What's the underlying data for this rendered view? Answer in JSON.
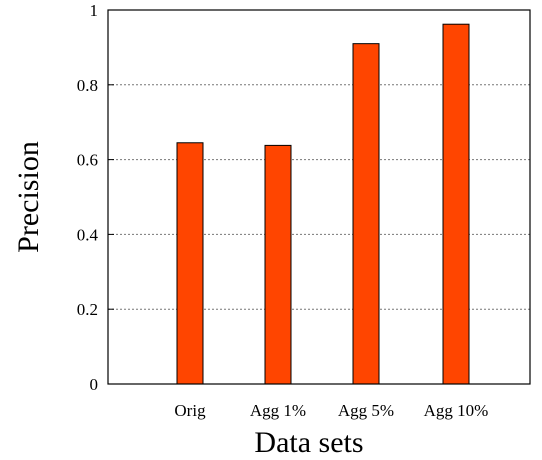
{
  "chart_data": {
    "type": "bar",
    "categories": [
      "Orig",
      "Agg 1%",
      "Agg 5%",
      "Agg 10%"
    ],
    "values": [
      0.645,
      0.638,
      0.91,
      0.962
    ],
    "xlabel": "Data sets",
    "ylabel": "Precision",
    "ylim": [
      0,
      1
    ],
    "yticks": [
      "0",
      "0.2",
      "0.4",
      "0.6",
      "0.8",
      "1"
    ],
    "grid": true,
    "bar_color": "#ff4500"
  }
}
